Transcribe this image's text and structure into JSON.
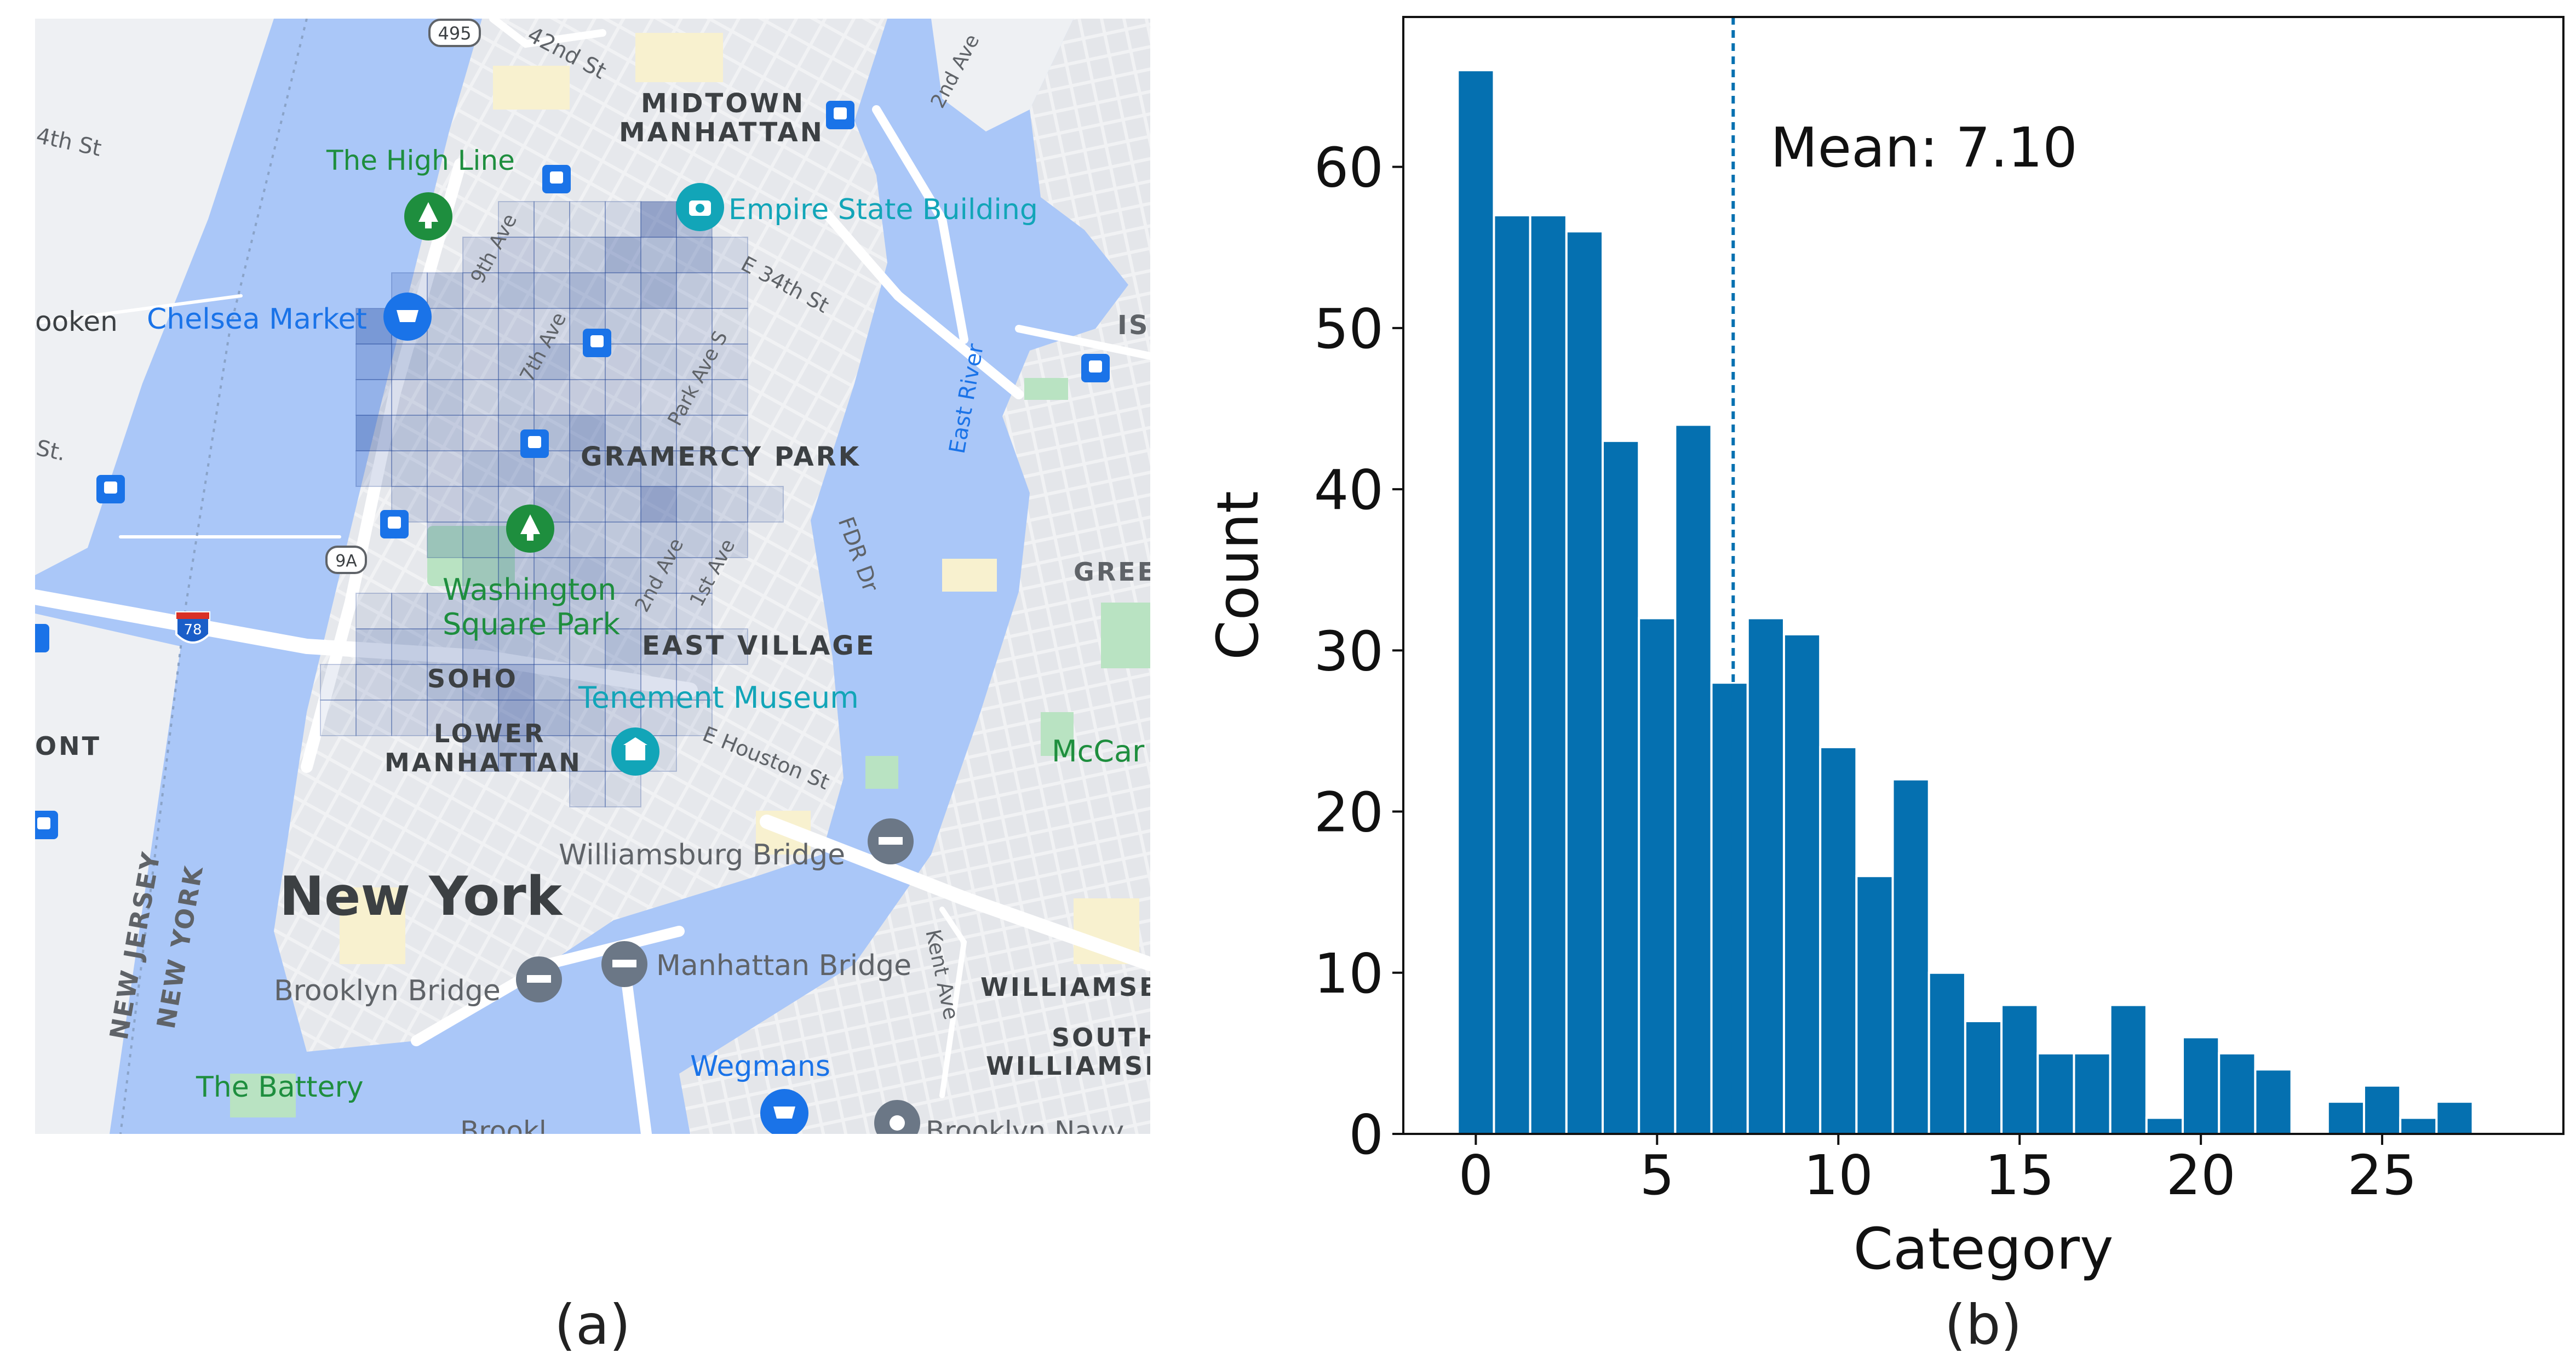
{
  "panels": {
    "a_caption": "(a)",
    "b_caption": "(b)"
  },
  "map": {
    "colors": {
      "water": "#aac7f8",
      "land": "#eef0f3",
      "road": "#ffffff",
      "major_road": "#ffffff",
      "park": "#b9e3c2",
      "block_yellow": "#f8f1cf",
      "grid_cell": "#1c3f94",
      "poi_blue": "#1a73e8",
      "poi_teal": "#12a5b8",
      "poi_green": "#1e8e3e",
      "poi_grey": "#6b7786",
      "label_dark": "#3c4043",
      "label_poi": "#1a73e8"
    },
    "labels": {
      "midtown": "MIDTOWN\nMANHATTAN",
      "midtown_1": "MIDTOWN",
      "midtown_2": "MANHATTAN",
      "high_line": "The High Line",
      "empire_state": "Empire State Building",
      "chelsea_market": "Chelsea Market",
      "hoboken": "ooken",
      "st_14th": "4th St",
      "st_42nd": "42nd St",
      "st_34th": "E 34th St",
      "ave_9th": "9th Ave",
      "ave_7th": "7th Ave",
      "ave_park": "Park Ave S",
      "ave_2nd": "2nd Ave",
      "ave_1st": "1st Ave",
      "st_partial": "St.",
      "gramercy": "GRAMERCY PARK",
      "east_river": "East River",
      "fdr": "FDR Dr",
      "greenpoint": "GREE",
      "isl": "ISL",
      "washington_1": "Washington",
      "washington_2": "Square Park",
      "east_village": "EAST VILLAGE",
      "soho": "SOHO",
      "tenement": "Tenement Museum",
      "lower_1": "LOWER",
      "lower_2": "MANHATTAN",
      "houston": "E Houston St",
      "mccarren": "McCar",
      "ont": "ONT",
      "williamsburg_bridge": "Williamsburg Bridge",
      "new_york": "New York",
      "new_jersey": "NEW JERSEY",
      "new_york_state": "NEW YORK",
      "brooklyn_bridge": "Brooklyn Bridge",
      "manhattan_bridge": "Manhattan Bridge",
      "williamsburg_1": "WILLIAMSB",
      "south_1": "SOUTH",
      "south_2": "WILLIAMSE",
      "kent_ave": "Kent Ave",
      "the_battery": "The Battery",
      "wegmans": "Wegmans",
      "brooklyn_navy": "Brooklyn Navy",
      "shield_495": "495",
      "shield_9a": "9A",
      "shield_78": "78",
      "avenue_2nd_top": "2nd Ave"
    }
  },
  "chart_data": {
    "type": "bar",
    "title": "",
    "xlabel": "Category",
    "ylabel": "Count",
    "categories": [
      0,
      1,
      2,
      3,
      4,
      5,
      6,
      7,
      8,
      9,
      10,
      11,
      12,
      13,
      14,
      15,
      16,
      17,
      18,
      19,
      20,
      21,
      22,
      23,
      24,
      25,
      26,
      27,
      28
    ],
    "values": [
      66,
      57,
      57,
      56,
      43,
      32,
      44,
      28,
      32,
      31,
      24,
      16,
      22,
      10,
      7,
      8,
      5,
      5,
      8,
      1,
      6,
      5,
      4,
      0,
      2,
      3,
      1,
      2,
      null
    ],
    "xlim": [
      -2,
      30
    ],
    "ylim": [
      0,
      69.3
    ],
    "xticks": [
      0,
      5,
      10,
      15,
      20,
      25
    ],
    "yticks": [
      0,
      10,
      20,
      30,
      40,
      50,
      60
    ],
    "bar_color": "#0570b0",
    "mean": 7.1,
    "mean_label": "Mean: 7.10",
    "mean_line_style": "dashed",
    "grid": false
  }
}
